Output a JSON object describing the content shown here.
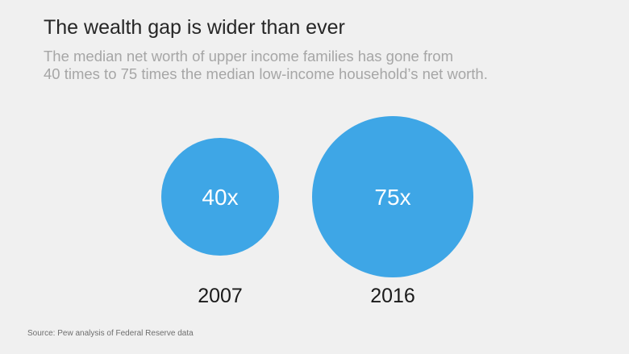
{
  "header": {
    "title": "The wealth gap is wider than ever",
    "subtitle_lines": [
      "The median net worth of upper income families has gone from",
      "40 times to 75 times the median low-income household’s net worth."
    ]
  },
  "chart_data": {
    "type": "bubble",
    "categories": [
      "2007",
      "2016"
    ],
    "values": [
      40,
      75
    ],
    "value_labels": [
      "40x",
      "75x"
    ],
    "color": "#3ea6e6",
    "label_color": "#ffffff",
    "category_label_color": "#1a1a1a"
  },
  "footer": {
    "source": "Source: Pew analysis of Federal Reserve data"
  }
}
